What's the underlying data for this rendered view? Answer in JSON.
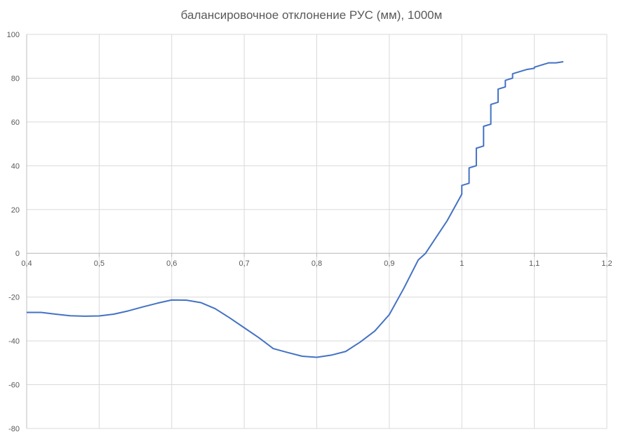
{
  "chart_data": {
    "type": "line",
    "title": "балансировочное отклонение РУС (мм), 1000м",
    "xlabel": "",
    "ylabel": "",
    "xlim": [
      0.4,
      1.2
    ],
    "ylim": [
      -80,
      100
    ],
    "x_ticks": [
      0.4,
      0.5,
      0.6,
      0.7,
      0.8,
      0.9,
      1.0,
      1.1,
      1.2
    ],
    "x_tick_labels": [
      "0,4",
      "0,5",
      "0,6",
      "0,7",
      "0,8",
      "0,9",
      "1",
      "1,1",
      "1,2"
    ],
    "y_ticks": [
      100,
      80,
      60,
      40,
      20,
      0,
      -20,
      -40,
      -60,
      -80
    ],
    "y_tick_labels": [
      "100",
      "80",
      "60",
      "40",
      "20",
      "0",
      "-20",
      "-40",
      "-60",
      "-80"
    ],
    "grid": true,
    "legend": "none",
    "series": [
      {
        "color": "#4472C4",
        "x": [
          0.4,
          0.42,
          0.44,
          0.46,
          0.48,
          0.5,
          0.52,
          0.54,
          0.56,
          0.58,
          0.6,
          0.62,
          0.64,
          0.66,
          0.68,
          0.7,
          0.72,
          0.74,
          0.76,
          0.78,
          0.8,
          0.82,
          0.84,
          0.86,
          0.88,
          0.9,
          0.92,
          0.94,
          0.95,
          0.96,
          0.98,
          1.0,
          1.0,
          1.01,
          1.01,
          1.02,
          1.02,
          1.03,
          1.03,
          1.04,
          1.04,
          1.05,
          1.05,
          1.06,
          1.06,
          1.07,
          1.07,
          1.08,
          1.08,
          1.09,
          1.09,
          1.1,
          1.1,
          1.11,
          1.12,
          1.13,
          1.14
        ],
        "y": [
          -27,
          -27,
          -27.8,
          -28.5,
          -28.7,
          -28.6,
          -27.8,
          -26.3,
          -24.5,
          -22.8,
          -21.3,
          -21.4,
          -22.5,
          -25.3,
          -29.5,
          -34.0,
          -38.5,
          -43.5,
          -45.3,
          -47,
          -47.5,
          -46.5,
          -44.8,
          -40.5,
          -35.5,
          -28,
          -16,
          -3,
          0,
          5,
          15,
          27,
          31,
          32,
          39,
          40,
          48,
          49,
          58,
          59,
          68,
          69,
          75,
          76,
          79,
          80,
          82,
          83,
          83,
          84,
          84,
          84.5,
          85,
          86,
          87,
          87,
          87.5
        ]
      }
    ]
  }
}
